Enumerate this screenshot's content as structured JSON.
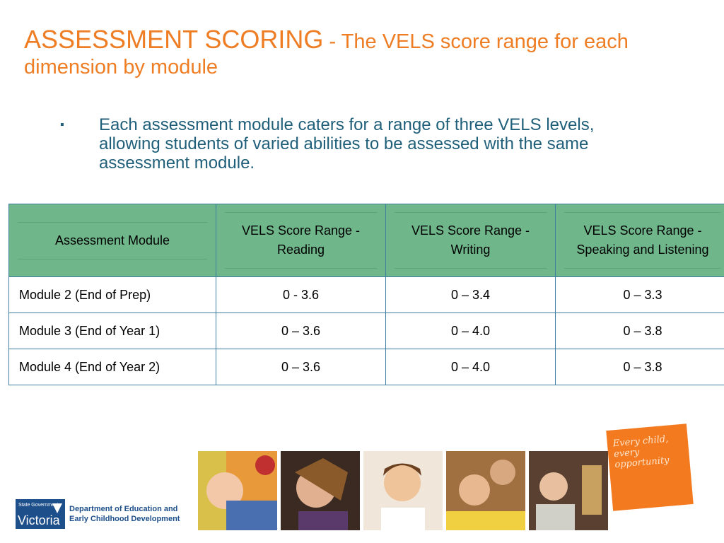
{
  "title": {
    "main": "ASSESSMENT SCORING",
    "sub": " - The VELS score range for each dimension by module"
  },
  "bullet": "Each assessment module caters for a range of three VELS levels, allowing students of varied abilities to be assessed with the same assessment module.",
  "table": {
    "headers": [
      "Assessment Module",
      "VELS Score Range - Reading",
      "VELS Score Range - Writing",
      "VELS Score Range - Speaking and Listening"
    ],
    "rows": [
      [
        "Module 2 (End of Prep)",
        "0 - 3.6",
        "0 – 3.4",
        "0 – 3.3"
      ],
      [
        "Module 3 (End of Year 1)",
        "0 – 3.6",
        "0 – 4.0",
        "0 – 3.8"
      ],
      [
        "Module 4 (End of Year 2)",
        "0 – 3.6",
        "0 – 4.0",
        "0 – 3.8"
      ]
    ]
  },
  "footer": {
    "logo_small": "State Government",
    "logo_big": "Victoria",
    "dept_line1": "Department of Education and",
    "dept_line2": "Early Childhood Development",
    "tagline": "Every child, every opportunity",
    "accent_color": "#ee7d24",
    "header_color": "#6fb68a"
  }
}
